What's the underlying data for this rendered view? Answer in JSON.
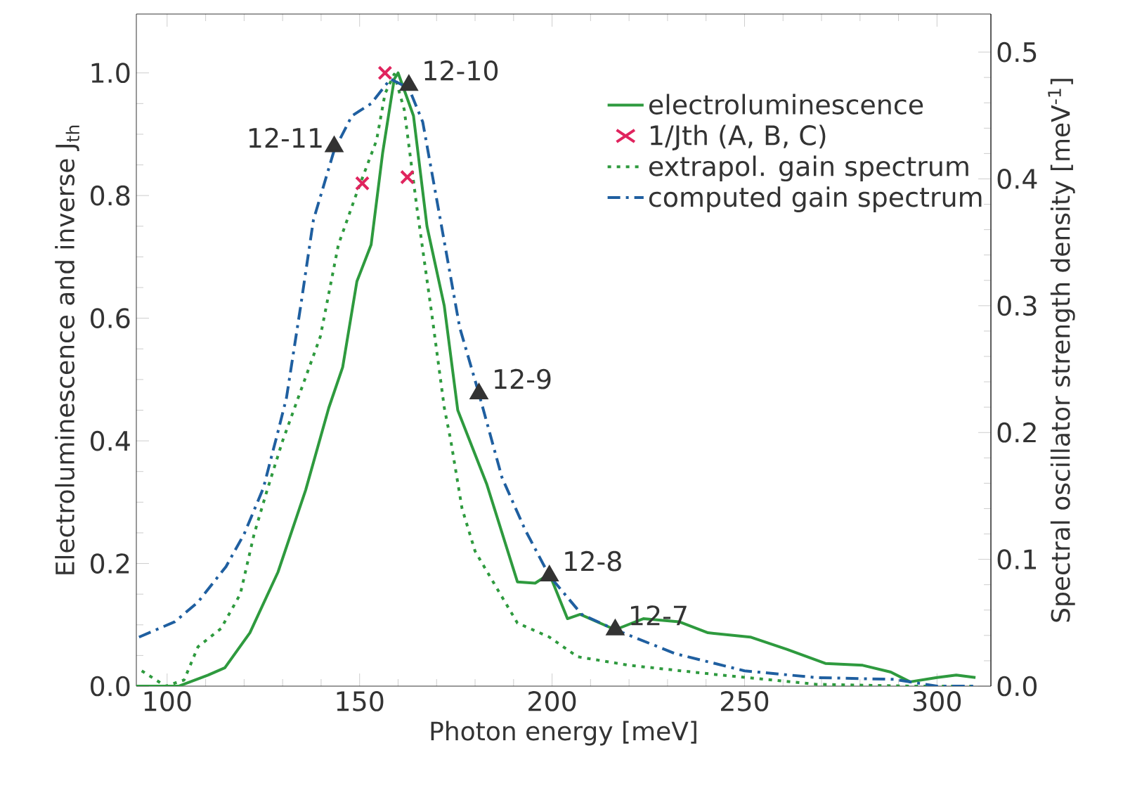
{
  "chart_data": {
    "type": "line",
    "xlabel": "Photon energy [meV]",
    "ylabel": "Electroluminescence and inverse J$_{th}$",
    "y2label": "Spectral oscillator strength density [meV$^{-1}$]",
    "xlim": [
      92,
      314
    ],
    "xticks": [
      100,
      150,
      200,
      250,
      300
    ],
    "ylim": [
      0,
      1.096
    ],
    "yticks": [
      {
        "value": 0,
        "label": "0.0"
      },
      0.2,
      0.4,
      0.6,
      0.8,
      {
        "value": 1,
        "label": "1.0"
      }
    ],
    "y2lim": [
      0,
      0.53
    ],
    "y2ticks": [
      {
        "value": 0,
        "label": "0.0"
      },
      0.1,
      0.2,
      0.3,
      0.4,
      0.5
    ],
    "legend": "top right",
    "series": [
      {
        "name": "electroluminescence",
        "color": "#2e9a3e",
        "line_style": "solid",
        "marker": "none",
        "x": [
          92,
          103,
          110.6,
          115,
          121.5,
          128.8,
          136,
          142,
          145.6,
          149.3,
          153,
          156,
          159,
          160,
          164,
          167.5,
          172,
          175.5,
          183,
          187,
          191,
          195.6,
          199.3,
          204,
          207.3,
          216.4,
          223.7,
          233,
          240.5,
          251.5,
          261,
          271,
          280.7,
          288,
          293,
          300,
          305,
          310
        ],
        "values": [
          0,
          0,
          0.018,
          0.03,
          0.087,
          0.186,
          0.32,
          0.454,
          0.52,
          0.66,
          0.72,
          0.87,
          0.99,
          1.0,
          0.93,
          0.75,
          0.62,
          0.45,
          0.33,
          0.25,
          0.17,
          0.168,
          0.183,
          0.11,
          0.117,
          0.092,
          0.11,
          0.105,
          0.087,
          0.08,
          0.06,
          0.037,
          0.034,
          0.023,
          0.007,
          0.014,
          0.018,
          0.014
        ]
      },
      {
        "name": "1/Jth (A, B, C)",
        "type": "scatter",
        "color": "#e0245e",
        "marker": "cross",
        "x": [
          150.7,
          156.6,
          162.4
        ],
        "values": [
          0.82,
          1.0,
          0.83
        ]
      },
      {
        "name": "extrapol. gain spectrum",
        "color": "#2e9a3e",
        "line_style": "dotted",
        "marker": "none",
        "x": [
          93.4,
          99.6,
          104.4,
          108,
          114,
          119,
          122.6,
          126,
          130,
          139.8,
          144.5,
          149.3,
          154.4,
          156.6,
          159,
          161.6,
          165,
          168.9,
          172,
          173.7,
          176.6,
          180,
          186,
          191,
          199.3,
          206.6,
          220,
          244,
          268.6,
          293,
          310
        ],
        "values": [
          0.025,
          0,
          0.01,
          0.064,
          0.094,
          0.15,
          0.248,
          0.32,
          0.4,
          0.57,
          0.72,
          0.805,
          0.89,
          0.966,
          0.998,
          0.94,
          0.775,
          0.6,
          0.454,
          0.4,
          0.29,
          0.22,
          0.156,
          0.103,
          0.08,
          0.048,
          0.034,
          0.018,
          0.003,
          0,
          0
        ]
      },
      {
        "name": "computed gain spectrum",
        "color": "#1f5fa0",
        "line_style": "dashdot",
        "marker": "none",
        "x": [
          92.7,
          102,
          108,
          115.3,
          120,
          125,
          128.8,
          131,
          134.7,
          138,
          143.4,
          148,
          153,
          158,
          162.8,
          166.4,
          171,
          176,
          181,
          187,
          193,
          199.3,
          207.7,
          216.4,
          232,
          250,
          268.6,
          289,
          300,
          310
        ],
        "values": [
          0.08,
          0.105,
          0.137,
          0.195,
          0.248,
          0.323,
          0.415,
          0.47,
          0.62,
          0.76,
          0.874,
          0.93,
          0.95,
          0.99,
          0.975,
          0.92,
          0.76,
          0.585,
          0.477,
          0.34,
          0.255,
          0.18,
          0.117,
          0.092,
          0.053,
          0.025,
          0.014,
          0.011,
          0,
          0
        ]
      },
      {
        "type": "scatter",
        "color": "#333333",
        "marker": "triangle",
        "x": [
          143.4,
          162.8,
          181,
          199.3,
          216.4
        ],
        "values": [
          0.88,
          0.98,
          0.477,
          0.18,
          0.092
        ]
      }
    ],
    "annotations": [
      {
        "text": "12-11",
        "x": 143.4,
        "y": 0.88
      },
      {
        "text": "12-10",
        "x": 162.8,
        "y": 0.98
      },
      {
        "text": "12-9",
        "x": 181,
        "y": 0.477
      },
      {
        "text": "12-8",
        "x": 199.3,
        "y": 0.18
      },
      {
        "text": "12-7",
        "x": 216.4,
        "y": 0.092
      }
    ]
  }
}
